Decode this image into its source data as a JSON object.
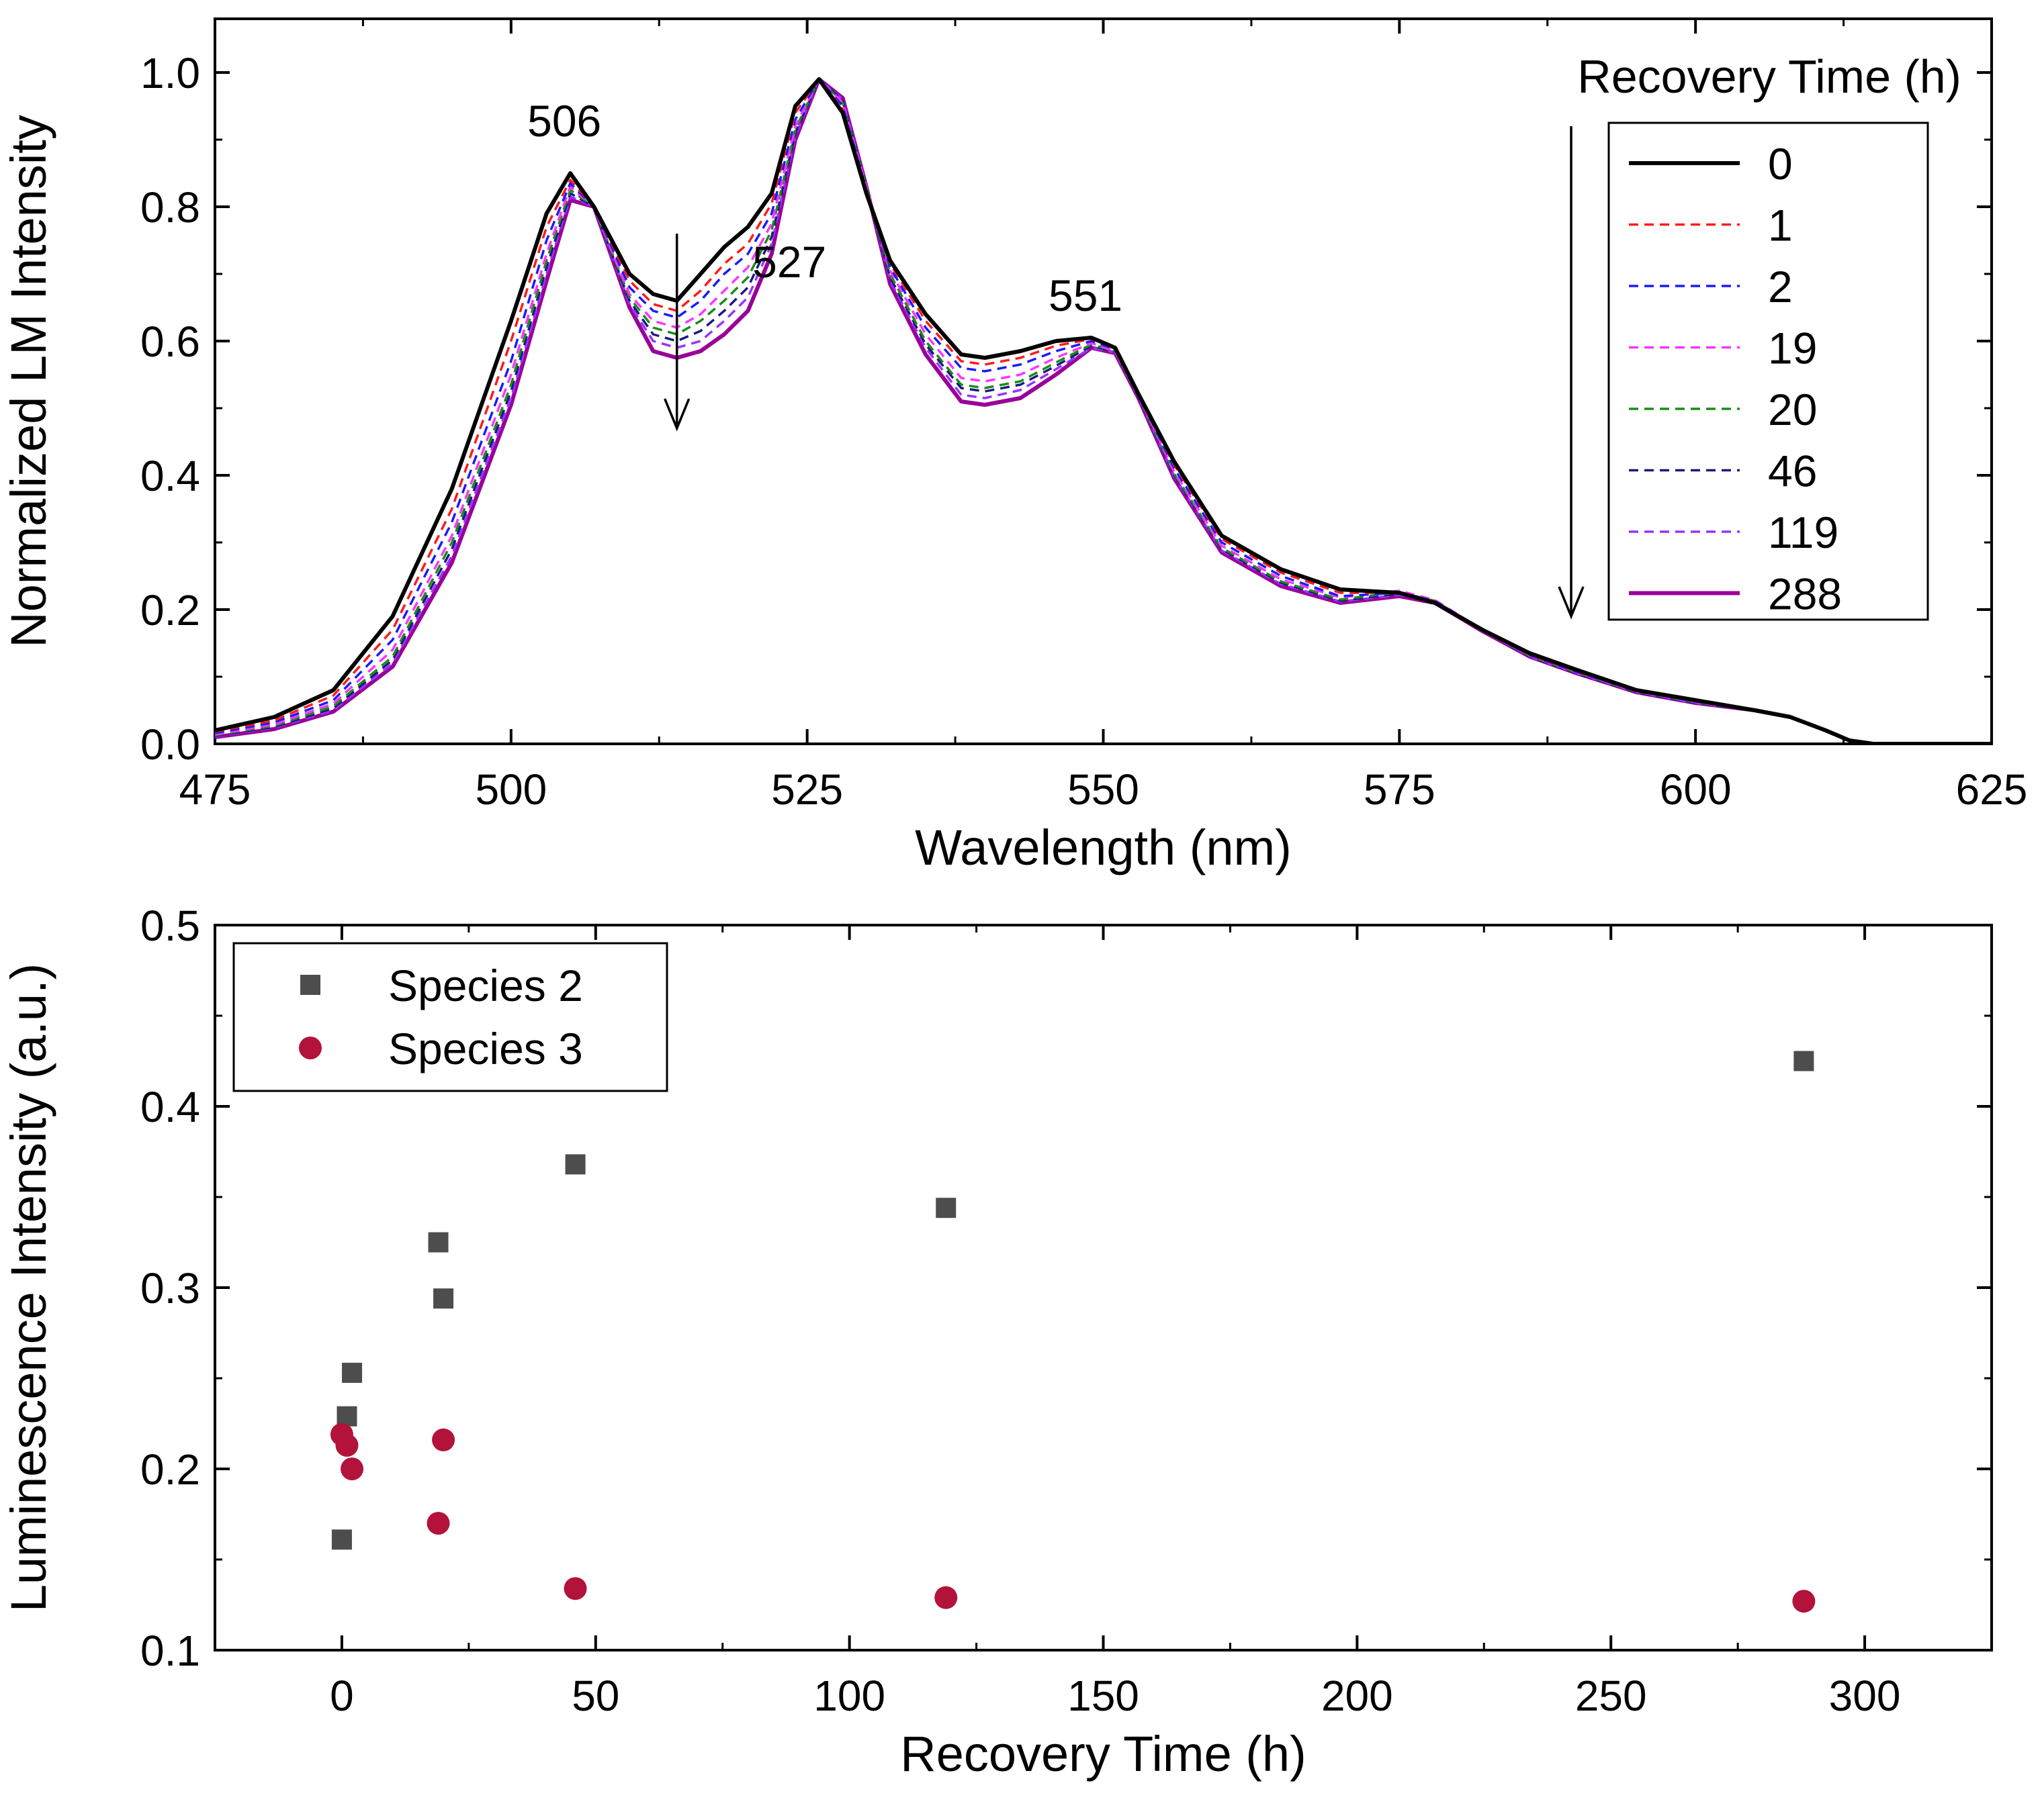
{
  "chart_data": [
    {
      "type": "line",
      "xlabel": "Wavelength (nm)",
      "ylabel": "Normalized LM Intensity",
      "xlim": [
        475,
        625
      ],
      "ylim": [
        0.0,
        1.08
      ],
      "xticks": [
        475,
        500,
        525,
        550,
        575,
        600,
        625
      ],
      "xtick_labels": [
        "475",
        "500",
        "525",
        "550",
        "575",
        "600",
        "625"
      ],
      "yticks": [
        0.0,
        0.2,
        0.4,
        0.6,
        0.8,
        1.0
      ],
      "ytick_labels": [
        "0.0",
        "0.2",
        "0.4",
        "0.6",
        "0.8",
        "1.0"
      ],
      "annotations": [
        {
          "text": "506",
          "x": 504.5,
          "y": 0.905
        },
        {
          "text": "527",
          "x": 523.5,
          "y": 0.695
        },
        {
          "text": "551",
          "x": 548.5,
          "y": 0.645
        }
      ],
      "arrows": [
        {
          "x": 514,
          "y_from": 0.76,
          "y_to": 0.47
        },
        {
          "x": 589.5,
          "y_from": 0.92,
          "y_to": 0.19
        }
      ],
      "legend": {
        "title": "Recovery Time (h)",
        "position": "top-right"
      },
      "series": [
        {
          "name": "0",
          "color": "#000000",
          "style": "solid",
          "x": [
            475,
            480,
            485,
            490,
            495,
            500,
            503,
            505,
            507,
            510,
            512,
            514,
            516,
            518,
            520,
            522,
            524,
            526,
            528,
            530,
            532,
            535,
            538,
            540,
            543,
            546,
            549,
            551,
            553,
            556,
            560,
            565,
            570,
            575,
            578,
            582,
            586,
            590,
            595,
            600,
            605,
            608,
            611,
            613,
            615,
            618,
            621,
            625
          ],
          "y": [
            0.02,
            0.04,
            0.08,
            0.19,
            0.38,
            0.63,
            0.79,
            0.85,
            0.8,
            0.7,
            0.67,
            0.66,
            0.7,
            0.74,
            0.77,
            0.82,
            0.95,
            0.99,
            0.94,
            0.82,
            0.72,
            0.64,
            0.58,
            0.575,
            0.585,
            0.6,
            0.605,
            0.59,
            0.52,
            0.42,
            0.31,
            0.26,
            0.23,
            0.225,
            0.21,
            0.17,
            0.135,
            0.11,
            0.08,
            0.065,
            0.05,
            0.04,
            0.02,
            0.005,
            0.0,
            0.0,
            0.0,
            0.0
          ]
        },
        {
          "name": "1",
          "color": "#ff1a1a",
          "style": "dashed",
          "x": [
            475,
            480,
            485,
            490,
            495,
            500,
            503,
            505,
            507,
            510,
            512,
            514,
            516,
            518,
            520,
            522,
            524,
            526,
            528,
            530,
            532,
            535,
            538,
            540,
            543,
            546,
            549,
            551,
            553,
            556,
            560,
            565,
            570,
            575,
            578,
            582,
            586,
            590,
            595,
            600,
            605,
            608,
            611,
            613,
            615,
            618,
            621,
            625
          ],
          "y": [
            0.018,
            0.035,
            0.072,
            0.17,
            0.35,
            0.6,
            0.77,
            0.84,
            0.8,
            0.69,
            0.655,
            0.645,
            0.675,
            0.715,
            0.745,
            0.805,
            0.94,
            0.99,
            0.945,
            0.82,
            0.715,
            0.63,
            0.57,
            0.565,
            0.575,
            0.593,
            0.603,
            0.59,
            0.52,
            0.415,
            0.305,
            0.255,
            0.225,
            0.225,
            0.212,
            0.17,
            0.133,
            0.108,
            0.08,
            0.064,
            0.05,
            0.04,
            0.02,
            0.005,
            0.0,
            0.0,
            0.0,
            0.0
          ]
        },
        {
          "name": "2",
          "color": "#1a1aff",
          "style": "dashed",
          "x": [
            475,
            480,
            485,
            490,
            495,
            500,
            503,
            505,
            507,
            510,
            512,
            514,
            516,
            518,
            520,
            522,
            524,
            526,
            528,
            530,
            532,
            535,
            538,
            540,
            543,
            546,
            549,
            551,
            553,
            556,
            560,
            565,
            570,
            575,
            578,
            582,
            586,
            590,
            595,
            600,
            605,
            608,
            611,
            613,
            615,
            618,
            621,
            625
          ],
          "y": [
            0.016,
            0.032,
            0.065,
            0.155,
            0.33,
            0.57,
            0.75,
            0.835,
            0.8,
            0.68,
            0.645,
            0.635,
            0.66,
            0.7,
            0.73,
            0.79,
            0.93,
            0.99,
            0.95,
            0.825,
            0.71,
            0.62,
            0.56,
            0.555,
            0.565,
            0.585,
            0.6,
            0.588,
            0.52,
            0.41,
            0.3,
            0.25,
            0.22,
            0.225,
            0.213,
            0.17,
            0.132,
            0.107,
            0.079,
            0.063,
            0.05,
            0.04,
            0.02,
            0.005,
            0.0,
            0.0,
            0.0,
            0.0
          ]
        },
        {
          "name": "19",
          "color": "#ff33ff",
          "style": "dashed",
          "x": [
            475,
            480,
            485,
            490,
            495,
            500,
            503,
            505,
            507,
            510,
            512,
            514,
            516,
            518,
            520,
            522,
            524,
            526,
            528,
            530,
            532,
            535,
            538,
            540,
            543,
            546,
            549,
            551,
            553,
            556,
            560,
            565,
            570,
            575,
            578,
            582,
            586,
            590,
            595,
            600,
            605,
            608,
            611,
            613,
            615,
            618,
            621,
            625
          ],
          "y": [
            0.014,
            0.029,
            0.06,
            0.14,
            0.31,
            0.55,
            0.73,
            0.83,
            0.8,
            0.67,
            0.63,
            0.62,
            0.64,
            0.675,
            0.71,
            0.775,
            0.92,
            0.99,
            0.955,
            0.83,
            0.705,
            0.61,
            0.545,
            0.54,
            0.55,
            0.575,
            0.597,
            0.585,
            0.518,
            0.405,
            0.295,
            0.245,
            0.218,
            0.228,
            0.214,
            0.17,
            0.131,
            0.106,
            0.078,
            0.062,
            0.05,
            0.04,
            0.02,
            0.005,
            0.0,
            0.0,
            0.0,
            0.0
          ]
        },
        {
          "name": "20",
          "color": "#1a8c1a",
          "style": "dashed",
          "x": [
            475,
            480,
            485,
            490,
            495,
            500,
            503,
            505,
            507,
            510,
            512,
            514,
            516,
            518,
            520,
            522,
            524,
            526,
            528,
            530,
            532,
            535,
            538,
            540,
            543,
            546,
            549,
            551,
            553,
            556,
            560,
            565,
            570,
            575,
            578,
            582,
            586,
            590,
            595,
            600,
            605,
            608,
            611,
            613,
            615,
            618,
            621,
            625
          ],
          "y": [
            0.013,
            0.027,
            0.056,
            0.13,
            0.3,
            0.535,
            0.72,
            0.825,
            0.8,
            0.665,
            0.62,
            0.61,
            0.63,
            0.66,
            0.695,
            0.765,
            0.915,
            0.99,
            0.955,
            0.83,
            0.7,
            0.6,
            0.535,
            0.53,
            0.54,
            0.568,
            0.595,
            0.585,
            0.517,
            0.402,
            0.292,
            0.242,
            0.215,
            0.226,
            0.213,
            0.17,
            0.131,
            0.106,
            0.078,
            0.062,
            0.05,
            0.04,
            0.02,
            0.005,
            0.0,
            0.0,
            0.0,
            0.0
          ]
        },
        {
          "name": "46",
          "color": "#1a1a80",
          "style": "dashed",
          "x": [
            475,
            480,
            485,
            490,
            495,
            500,
            503,
            505,
            507,
            510,
            512,
            514,
            516,
            518,
            520,
            522,
            524,
            526,
            528,
            530,
            532,
            535,
            538,
            540,
            543,
            546,
            549,
            551,
            553,
            556,
            560,
            565,
            570,
            575,
            578,
            582,
            586,
            590,
            595,
            600,
            605,
            608,
            611,
            613,
            615,
            618,
            621,
            625
          ],
          "y": [
            0.012,
            0.025,
            0.053,
            0.125,
            0.29,
            0.525,
            0.71,
            0.82,
            0.8,
            0.66,
            0.61,
            0.6,
            0.615,
            0.645,
            0.68,
            0.755,
            0.91,
            0.99,
            0.958,
            0.83,
            0.695,
            0.595,
            0.53,
            0.525,
            0.535,
            0.563,
            0.593,
            0.584,
            0.516,
            0.4,
            0.29,
            0.24,
            0.213,
            0.224,
            0.212,
            0.17,
            0.13,
            0.105,
            0.077,
            0.061,
            0.05,
            0.04,
            0.02,
            0.005,
            0.0,
            0.0,
            0.0,
            0.0
          ]
        },
        {
          "name": "119",
          "color": "#9933ff",
          "style": "dashed",
          "x": [
            475,
            480,
            485,
            490,
            495,
            500,
            503,
            505,
            507,
            510,
            512,
            514,
            516,
            518,
            520,
            522,
            524,
            526,
            528,
            530,
            532,
            535,
            538,
            540,
            543,
            546,
            549,
            551,
            553,
            556,
            560,
            565,
            570,
            575,
            578,
            582,
            586,
            590,
            595,
            600,
            605,
            608,
            611,
            613,
            615,
            618,
            621,
            625
          ],
          "y": [
            0.011,
            0.024,
            0.05,
            0.12,
            0.28,
            0.515,
            0.7,
            0.815,
            0.8,
            0.655,
            0.6,
            0.59,
            0.6,
            0.63,
            0.665,
            0.745,
            0.905,
            0.99,
            0.96,
            0.83,
            0.69,
            0.59,
            0.52,
            0.515,
            0.527,
            0.558,
            0.59,
            0.583,
            0.515,
            0.398,
            0.288,
            0.238,
            0.212,
            0.222,
            0.211,
            0.17,
            0.13,
            0.105,
            0.077,
            0.061,
            0.05,
            0.04,
            0.02,
            0.005,
            0.0,
            0.0,
            0.0,
            0.0
          ]
        },
        {
          "name": "288",
          "color": "#990099",
          "style": "solid",
          "x": [
            475,
            480,
            485,
            490,
            495,
            500,
            503,
            505,
            507,
            510,
            512,
            514,
            516,
            518,
            520,
            522,
            524,
            526,
            528,
            530,
            532,
            535,
            538,
            540,
            543,
            546,
            549,
            551,
            553,
            556,
            560,
            565,
            570,
            575,
            578,
            582,
            586,
            590,
            595,
            600,
            605,
            608,
            611,
            613,
            615,
            618,
            621,
            625
          ],
          "y": [
            0.01,
            0.022,
            0.048,
            0.115,
            0.27,
            0.505,
            0.69,
            0.81,
            0.8,
            0.65,
            0.585,
            0.575,
            0.585,
            0.61,
            0.645,
            0.73,
            0.9,
            0.99,
            0.962,
            0.83,
            0.685,
            0.58,
            0.51,
            0.505,
            0.515,
            0.55,
            0.59,
            0.582,
            0.514,
            0.395,
            0.285,
            0.235,
            0.21,
            0.22,
            0.21,
            0.168,
            0.13,
            0.105,
            0.077,
            0.061,
            0.05,
            0.04,
            0.02,
            0.005,
            0.0,
            0.0,
            0.0,
            0.0
          ]
        }
      ]
    },
    {
      "type": "scatter",
      "xlabel": "Recovery Time (h)",
      "ylabel": "Luminescence Intensity (a.u.)",
      "xlim": [
        -25,
        325
      ],
      "ylim": [
        0.1,
        0.5
      ],
      "xticks": [
        0,
        50,
        100,
        150,
        200,
        250,
        300
      ],
      "xtick_labels": [
        "0",
        "50",
        "100",
        "150",
        "200",
        "250",
        "300"
      ],
      "yticks": [
        0.1,
        0.2,
        0.3,
        0.4,
        0.5
      ],
      "ytick_labels": [
        "0.1",
        "0.2",
        "0.3",
        "0.4",
        "0.5"
      ],
      "legend": {
        "position": "top-left"
      },
      "series": [
        {
          "name": "Species 2",
          "marker": "square",
          "color": "#4d4d4d",
          "x": [
            0,
            1,
            2,
            19,
            20,
            46,
            119,
            288
          ],
          "y": [
            0.161,
            0.229,
            0.253,
            0.325,
            0.294,
            0.368,
            0.344,
            0.425
          ]
        },
        {
          "name": "Species 3",
          "marker": "circle",
          "color": "#b3123a",
          "x": [
            0,
            1,
            2,
            19,
            20,
            46,
            119,
            288
          ],
          "y": [
            0.219,
            0.213,
            0.2,
            0.17,
            0.216,
            0.134,
            0.129,
            0.127
          ]
        }
      ]
    }
  ]
}
